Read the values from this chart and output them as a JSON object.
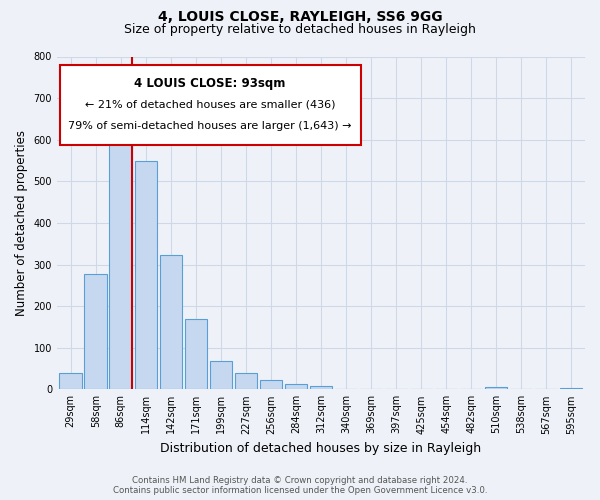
{
  "title": "4, LOUIS CLOSE, RAYLEIGH, SS6 9GG",
  "subtitle": "Size of property relative to detached houses in Rayleigh",
  "xlabel": "Distribution of detached houses by size in Rayleigh",
  "ylabel": "Number of detached properties",
  "bar_labels": [
    "29sqm",
    "58sqm",
    "86sqm",
    "114sqm",
    "142sqm",
    "171sqm",
    "199sqm",
    "227sqm",
    "256sqm",
    "284sqm",
    "312sqm",
    "340sqm",
    "369sqm",
    "397sqm",
    "425sqm",
    "454sqm",
    "482sqm",
    "510sqm",
    "538sqm",
    "567sqm",
    "595sqm"
  ],
  "bar_values": [
    38,
    278,
    592,
    550,
    322,
    170,
    68,
    38,
    22,
    12,
    8,
    0,
    0,
    0,
    0,
    0,
    0,
    5,
    0,
    0,
    2
  ],
  "bar_color": "#c5d8f0",
  "bar_edge_color": "#5a9fd4",
  "highlight_label": "4 LOUIS CLOSE: 93sqm",
  "annotation_line1": "← 21% of detached houses are smaller (436)",
  "annotation_line2": "79% of semi-detached houses are larger (1,643) →",
  "ylim": [
    0,
    800
  ],
  "yticks": [
    0,
    100,
    200,
    300,
    400,
    500,
    600,
    700,
    800
  ],
  "vline_color": "#cc0000",
  "box_color": "#ffffff",
  "box_edge_color": "#cc0000",
  "grid_color": "#d0d8e8",
  "bg_color": "#eef2f8",
  "footer_line1": "Contains HM Land Registry data © Crown copyright and database right 2024.",
  "footer_line2": "Contains public sector information licensed under the Open Government Licence v3.0.",
  "title_fontsize": 10,
  "subtitle_fontsize": 9,
  "tick_fontsize": 7,
  "ylabel_fontsize": 8.5,
  "xlabel_fontsize": 9
}
